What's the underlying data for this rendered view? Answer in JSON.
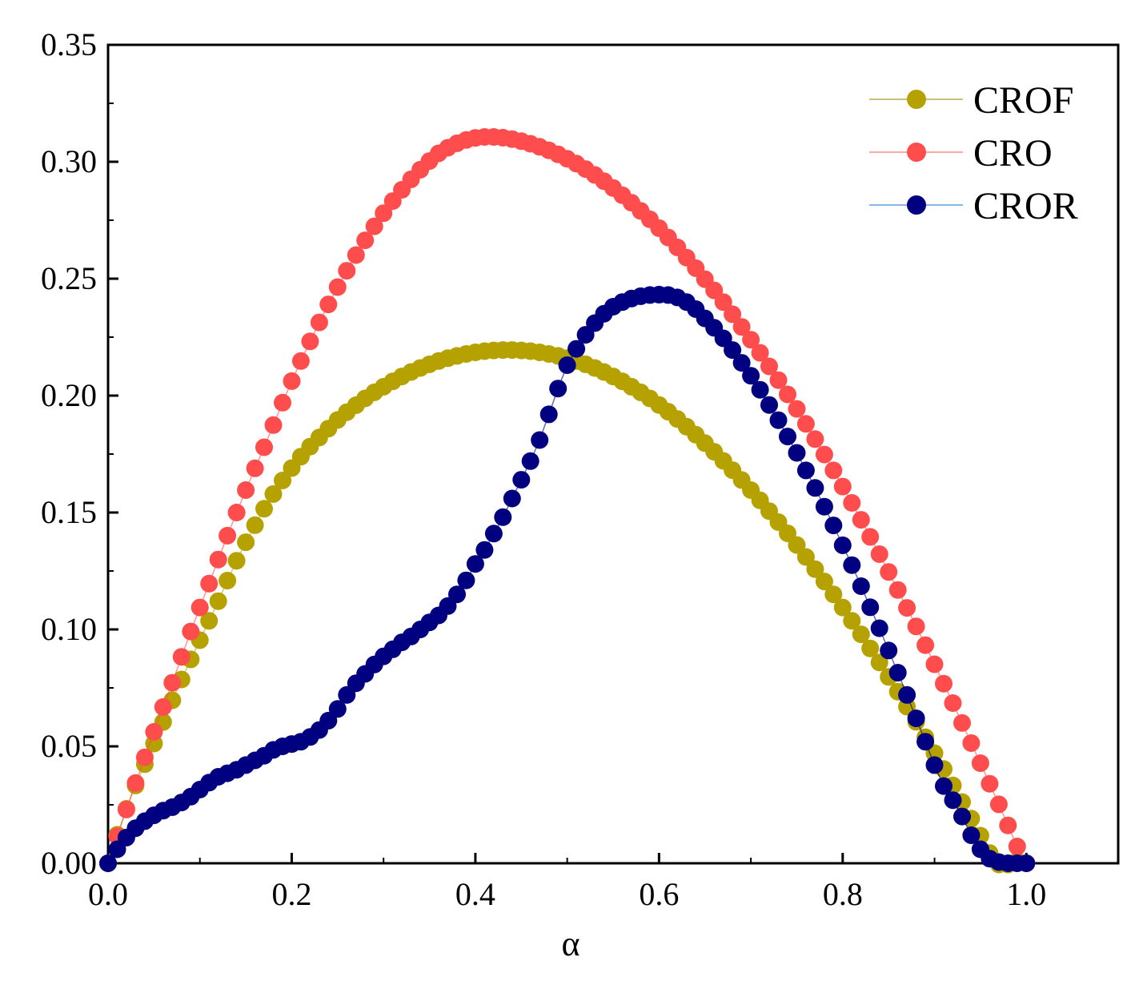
{
  "chart_data": {
    "type": "scatter",
    "title": "",
    "xlabel": "α",
    "ylabel": "",
    "xlim": [
      0,
      1.1
    ],
    "ylim": [
      0,
      0.35
    ],
    "xticks": [
      0.0,
      0.2,
      0.4,
      0.6,
      0.8,
      1.0
    ],
    "xtick_labels": [
      "0.0",
      "0.2",
      "0.4",
      "0.6",
      "0.8",
      "1.0"
    ],
    "yticks": [
      0.0,
      0.05,
      0.1,
      0.15,
      0.2,
      0.25,
      0.3,
      0.35
    ],
    "ytick_labels": [
      "0.00",
      "0.05",
      "0.10",
      "0.15",
      "0.20",
      "0.25",
      "0.30",
      "0.35"
    ],
    "legend_position": "top-right",
    "x": [
      0.0,
      0.01,
      0.02,
      0.03,
      0.04,
      0.05,
      0.06,
      0.07,
      0.08,
      0.09,
      0.1,
      0.11,
      0.12,
      0.13,
      0.14,
      0.15,
      0.16,
      0.17,
      0.18,
      0.19,
      0.2,
      0.21,
      0.22,
      0.23,
      0.24,
      0.25,
      0.26,
      0.27,
      0.28,
      0.29,
      0.3,
      0.31,
      0.32,
      0.33,
      0.34,
      0.35,
      0.36,
      0.37,
      0.38,
      0.39,
      0.4,
      0.41,
      0.42,
      0.43,
      0.44,
      0.45,
      0.46,
      0.47,
      0.48,
      0.49,
      0.5,
      0.51,
      0.52,
      0.53,
      0.54,
      0.55,
      0.56,
      0.57,
      0.58,
      0.59,
      0.6,
      0.61,
      0.62,
      0.63,
      0.64,
      0.65,
      0.66,
      0.67,
      0.68,
      0.69,
      0.7,
      0.71,
      0.72,
      0.73,
      0.74,
      0.75,
      0.76,
      0.77,
      0.78,
      0.79,
      0.8,
      0.81,
      0.82,
      0.83,
      0.84,
      0.85,
      0.86,
      0.87,
      0.88,
      0.89,
      0.9,
      0.91,
      0.92,
      0.93,
      0.94,
      0.95,
      0.96,
      0.97,
      0.98,
      0.99,
      1.0
    ],
    "series": [
      {
        "name": "CROF",
        "color": "#b5a100",
        "values": [
          0.0,
          0.0122,
          0.0233,
          0.0333,
          0.0424,
          0.0512,
          0.0604,
          0.0697,
          0.0786,
          0.0872,
          0.0954,
          0.1037,
          0.1121,
          0.1209,
          0.1294,
          0.1373,
          0.1446,
          0.1516,
          0.1579,
          0.1637,
          0.169,
          0.1739,
          0.1782,
          0.1821,
          0.1859,
          0.1896,
          0.1929,
          0.1959,
          0.1988,
          0.2014,
          0.2038,
          0.2061,
          0.2082,
          0.2101,
          0.2118,
          0.2134,
          0.2148,
          0.216,
          0.217,
          0.2178,
          0.2185,
          0.219,
          0.2193,
          0.2195,
          0.2195,
          0.2193,
          0.219,
          0.2185,
          0.2178,
          0.217,
          0.216,
          0.2148,
          0.2134,
          0.2118,
          0.2101,
          0.2082,
          0.2061,
          0.2038,
          0.2014,
          0.1988,
          0.196,
          0.1931,
          0.19,
          0.1867,
          0.1833,
          0.1797,
          0.176,
          0.1721,
          0.1681,
          0.1639,
          0.1596,
          0.1552,
          0.1506,
          0.1459,
          0.1411,
          0.1361,
          0.131,
          0.1258,
          0.1205,
          0.115,
          0.1094,
          0.1037,
          0.0979,
          0.0919,
          0.0859,
          0.0797,
          0.0734,
          0.067,
          0.0605,
          0.0539,
          0.0471,
          0.0403,
          0.0333,
          0.0262,
          0.0191,
          0.0118,
          0.0044,
          -0.0005,
          -0.0005,
          0.001,
          0.0
        ]
      },
      {
        "name": "CRO",
        "color": "#ff4d4d",
        "values": [
          0.0,
          0.0115,
          0.023,
          0.0343,
          0.0453,
          0.0562,
          0.0668,
          0.0772,
          0.0883,
          0.0991,
          0.1094,
          0.1196,
          0.1299,
          0.1401,
          0.15,
          0.1596,
          0.1689,
          0.1779,
          0.1874,
          0.197,
          0.2062,
          0.2148,
          0.2232,
          0.2313,
          0.239,
          0.2464,
          0.2534,
          0.2601,
          0.2664,
          0.2724,
          0.278,
          0.2832,
          0.288,
          0.2925,
          0.2966,
          0.3003,
          0.3036,
          0.306,
          0.3079,
          0.3093,
          0.3102,
          0.3106,
          0.3106,
          0.3103,
          0.3097,
          0.3088,
          0.3077,
          0.3064,
          0.3049,
          0.3032,
          0.3013,
          0.2992,
          0.2969,
          0.2944,
          0.2917,
          0.2888,
          0.2857,
          0.2825,
          0.279,
          0.2754,
          0.2716,
          0.2676,
          0.2634,
          0.259,
          0.2545,
          0.2498,
          0.245,
          0.24,
          0.2348,
          0.2294,
          0.2239,
          0.2183,
          0.2125,
          0.2066,
          0.2005,
          0.1943,
          0.1879,
          0.1814,
          0.1748,
          0.168,
          0.1611,
          0.1541,
          0.1469,
          0.1396,
          0.1322,
          0.1246,
          0.1169,
          0.1092,
          0.1013,
          0.0933,
          0.0851,
          0.0768,
          0.0685,
          0.06,
          0.0514,
          0.0428,
          0.034,
          0.0252,
          0.0162,
          0.0072,
          0.0
        ]
      },
      {
        "name": "CROR",
        "color": "#000080",
        "values": [
          0.0,
          0.006,
          0.011,
          0.015,
          0.018,
          0.0205,
          0.0225,
          0.024,
          0.026,
          0.0285,
          0.0315,
          0.0345,
          0.037,
          0.0385,
          0.04,
          0.042,
          0.044,
          0.046,
          0.0485,
          0.05,
          0.051,
          0.052,
          0.054,
          0.057,
          0.061,
          0.066,
          0.072,
          0.077,
          0.081,
          0.085,
          0.0885,
          0.0915,
          0.0945,
          0.097,
          0.1,
          0.103,
          0.106,
          0.11,
          0.115,
          0.121,
          0.128,
          0.134,
          0.141,
          0.148,
          0.156,
          0.164,
          0.172,
          0.181,
          0.192,
          0.203,
          0.213,
          0.22,
          0.226,
          0.231,
          0.235,
          0.238,
          0.24,
          0.2415,
          0.2425,
          0.243,
          0.2432,
          0.243,
          0.242,
          0.24,
          0.237,
          0.233,
          0.229,
          0.2245,
          0.2195,
          0.214,
          0.2085,
          0.2025,
          0.196,
          0.1895,
          0.1825,
          0.1755,
          0.168,
          0.1605,
          0.1525,
          0.1445,
          0.136,
          0.1275,
          0.1185,
          0.1095,
          0.1005,
          0.091,
          0.0815,
          0.072,
          0.062,
          0.052,
          0.042,
          0.033,
          0.027,
          0.02,
          0.012,
          0.006,
          0.002,
          0.0005,
          0.0,
          0.0,
          0.0
        ]
      }
    ]
  }
}
